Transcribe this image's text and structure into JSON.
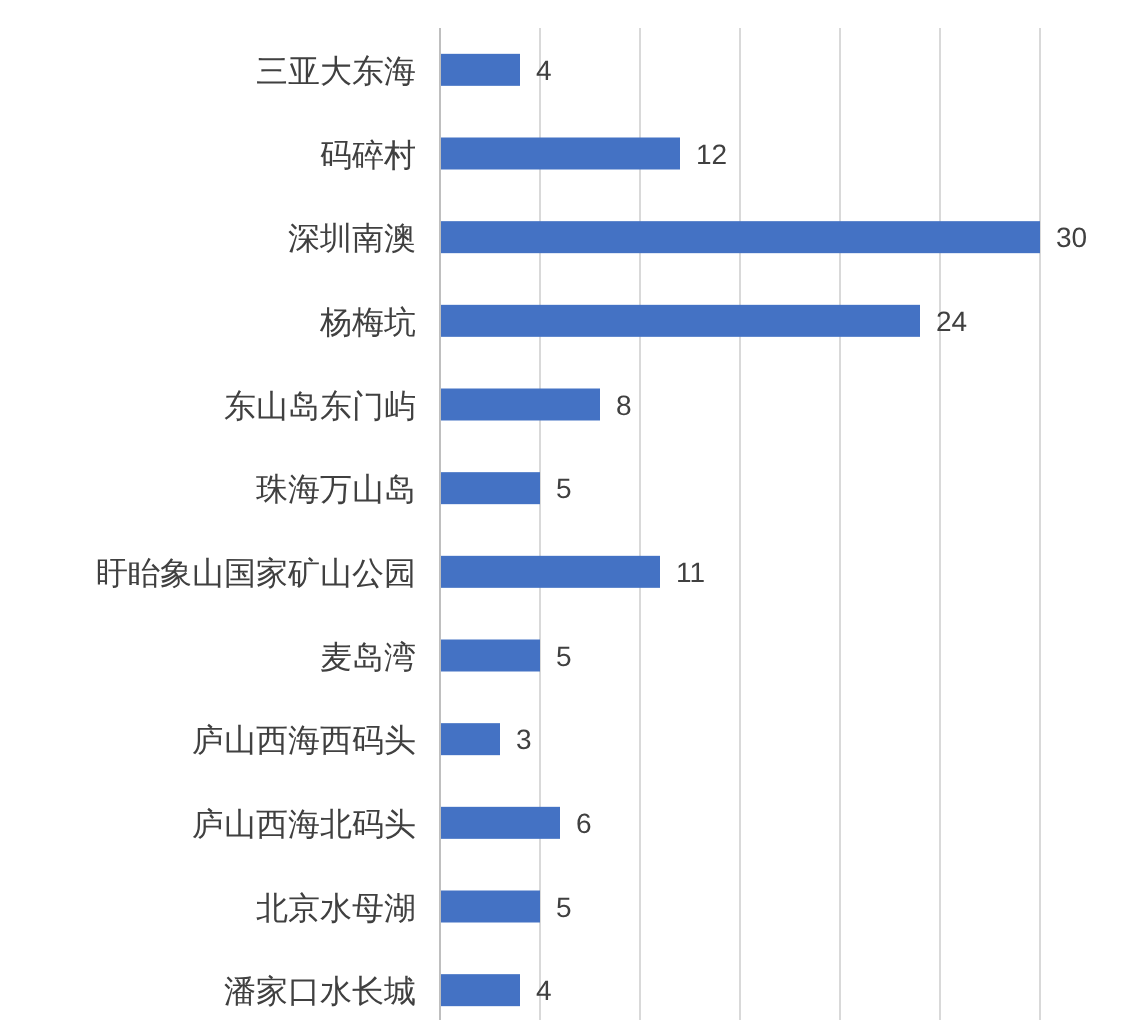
{
  "chart_data": {
    "type": "bar",
    "orientation": "horizontal",
    "categories": [
      "三亚大东海",
      "码碎村",
      "深圳南澳",
      "杨梅坑",
      "东山岛东门屿",
      "珠海万山岛",
      "盱眙象山国家矿山公园",
      "麦岛湾",
      "庐山西海西码头",
      "庐山西海北码头",
      "北京水母湖",
      "潘家口水长城"
    ],
    "values": [
      4,
      12,
      30,
      24,
      8,
      5,
      11,
      5,
      3,
      6,
      5,
      4
    ],
    "color": "#4472c4",
    "xlim": [
      0,
      30
    ],
    "xticks": [
      {
        "value": 0,
        "label": null
      },
      {
        "value": 5,
        "label": null
      },
      {
        "value": 10,
        "label": null
      },
      {
        "value": 15,
        "label": null
      },
      {
        "value": 20,
        "label": null
      },
      {
        "value": 25,
        "label": null
      },
      {
        "value": 30,
        "label": null
      }
    ],
    "tick_labels": "y",
    "grid": "x",
    "data_labels": true
  }
}
